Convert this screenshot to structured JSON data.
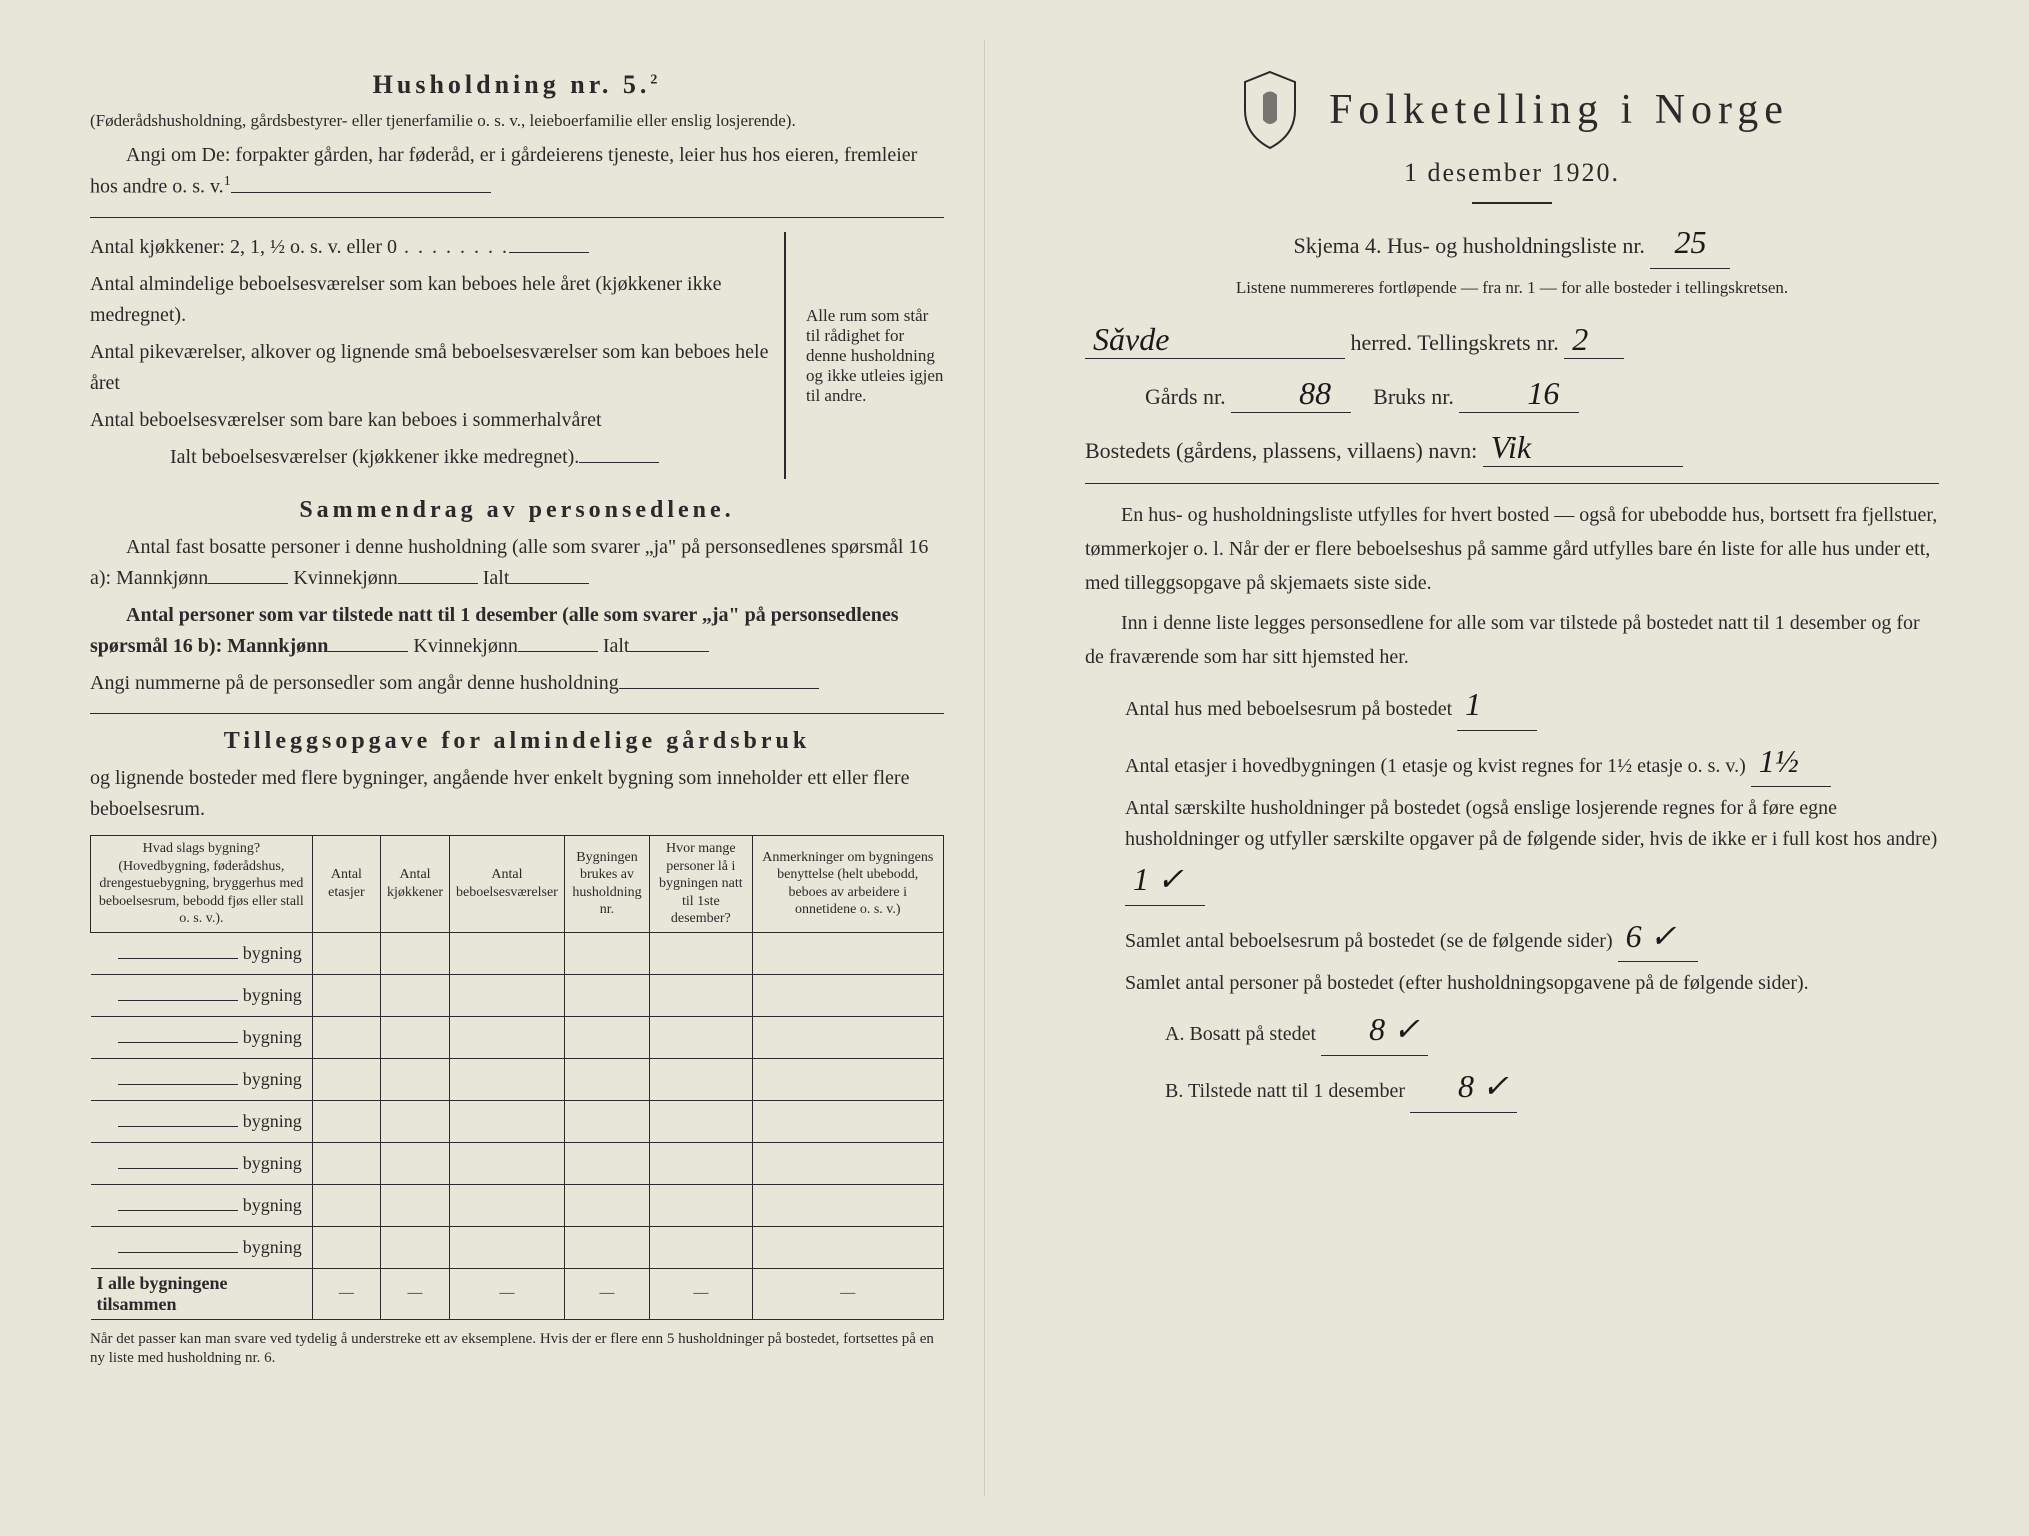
{
  "colors": {
    "paper": "#e8e6d8",
    "ink": "#2a2a2a",
    "handwriting": "#1a1a1a"
  },
  "left": {
    "heading": "Husholdning nr. 5.",
    "heading_sup": "2",
    "paren1": "(Føderådshusholdning, gårdsbestyrer- eller tjenerfamilie o. s. v., leieboerfamilie eller enslig losjerende).",
    "angi_line": "Angi om De: forpakter gården, har føderåd, er i gårdeierens tjeneste, leier hus hos eieren, fremleier hos andre o. s. v.",
    "kitchens_label": "Antal kjøkkener: 2, 1, ½ o. s. v. eller 0",
    "rooms1": "Antal almindelige beboelsesværelser som kan beboes hele året (kjøkkener ikke medregnet).",
    "rooms2": "Antal pikeværelser, alkover og lignende små beboelsesværelser som kan beboes hele året",
    "rooms3": "Antal beboelsesværelser som bare kan beboes i sommerhalvåret",
    "rooms_total": "Ialt beboelsesværelser (kjøkkener ikke medregnet).",
    "brace_text": "Alle rum som står til rådighet for denne husholdning og ikke utleies igjen til andre.",
    "summary_heading": "Sammendrag av personsedlene.",
    "summary_p1": "Antal fast bosatte personer i denne husholdning (alle som svarer „ja\" på personsedlenes spørsmål 16 a): Mannkjønn",
    "kvinne": "Kvinnekjønn",
    "ialt": "Ialt",
    "summary_p2": "Antal personer som var tilstede natt til 1 desember (alle som svarer „ja\" på personsedlenes spørsmål 16 b): Mannkjønn",
    "summary_p3": "Angi nummerne på de personsedler som angår denne husholdning",
    "tillegg_heading": "Tilleggsopgave for almindelige gårdsbruk",
    "tillegg_p": "og lignende bosteder med flere bygninger, angående hver enkelt bygning som inneholder ett eller flere beboelsesrum.",
    "table": {
      "columns": [
        "Hvad slags bygning?\n(Hovedbygning, føderådshus, drengestuebygning, bryggerhus med beboelsesrum, bebodd fjøs eller stall o. s. v.).",
        "Antal etasjer",
        "Antal kjøkkener",
        "Antal beboelsesværelser",
        "Bygningen brukes av husholdning nr.",
        "Hvor mange personer lå i bygningen natt til 1ste desember?",
        "Anmerkninger om bygningens benyttelse (helt ubebodd, beboes av arbeidere i onnetidene o. s. v.)"
      ],
      "row_label": "bygning",
      "row_count": 8,
      "total_label": "I alle bygningene tilsammen"
    },
    "footnote": "Når det passer kan man svare ved tydelig å understreke ett av eksemplene.\nHvis der er flere enn 5 husholdninger på bostedet, fortsettes på en ny liste med husholdning nr. 6."
  },
  "right": {
    "title": "Folketelling i Norge",
    "date": "1 desember 1920.",
    "skjema_line": "Skjema 4.  Hus- og husholdningsliste nr.",
    "list_nr": "25",
    "listene_line": "Listene nummereres fortløpende — fra nr. 1 — for alle bosteder i tellingskretsen.",
    "herred_value": "Sǎvde",
    "herred_label": "herred.  Tellingskrets nr.",
    "krets_nr": "2",
    "gards_label": "Gårds nr.",
    "gards_nr": "88",
    "bruks_label": "Bruks nr.",
    "bruks_nr": "16",
    "bosted_label": "Bostedets (gårdens, plassens, villaens) navn:",
    "bosted_value": "Vik",
    "para1": "En hus- og husholdningsliste utfylles for hvert bosted — også for ubebodde hus, bortsett fra fjellstuer, tømmerkojer o. l.  Når der er flere beboelseshus på samme gård utfylles bare én liste for alle hus under ett, med tilleggsopgave på skjemaets siste side.",
    "para2": "Inn i denne liste legges personsedlene for alle som var tilstede på bostedet natt til 1 desember og for de fraværende som har sitt hjemsted her.",
    "q1_label": "Antal hus med beboelsesrum på bostedet",
    "q1_value": "1",
    "q2_label_a": "Antal etasjer i hovedbygningen (1 etasje og kvist regnes for 1½ etasje o. s. v.)",
    "q2_value": "1½",
    "q3_label": "Antal særskilte husholdninger på bostedet (også enslige losjerende regnes for å føre egne husholdninger og utfyller særskilte opgaver på de følgende sider, hvis de ikke er i full kost hos andre)",
    "q3_value": "1 ✓",
    "q4_label": "Samlet antal beboelsesrum på bostedet (se de følgende sider)",
    "q4_value": "6 ✓",
    "q5_label": "Samlet antal personer på bostedet (efter husholdningsopgavene på de følgende sider).",
    "qA_label": "A.  Bosatt på stedet",
    "qA_value": "8 ✓",
    "qB_label": "B.  Tilstede natt til 1 desember",
    "qB_value": "8 ✓"
  }
}
